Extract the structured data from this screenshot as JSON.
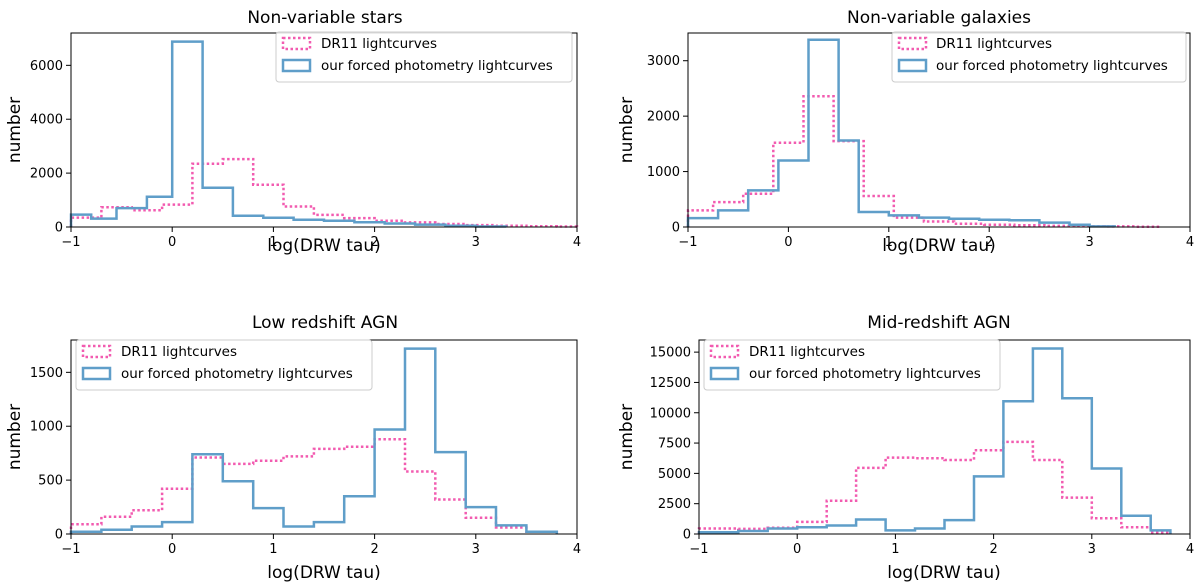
{
  "chart_data": [
    {
      "type": "histogram-step",
      "title": "Non-variable stars",
      "xlabel": "log(DRW tau)",
      "ylabel": "number",
      "xlim": [
        -1,
        4
      ],
      "ylim": [
        0,
        7200
      ],
      "xticks": [
        "−1",
        "0",
        "1",
        "2",
        "3",
        "4"
      ],
      "xtick_values": [
        -1,
        0,
        1,
        2,
        3,
        4
      ],
      "yticks": [
        "0",
        "2000",
        "4000",
        "6000"
      ],
      "ytick_values": [
        0,
        2000,
        4000,
        6000
      ],
      "legend_position": "upper-right",
      "series": [
        {
          "name": "DR11 lightcurves",
          "style": "dotted",
          "color": "#f25bb0",
          "bins": [
            -1.0,
            -0.7,
            -0.4,
            -0.1,
            0.2,
            0.5,
            0.8,
            1.1,
            1.4,
            1.7,
            2.0,
            2.3,
            2.6,
            2.9,
            3.2,
            3.5,
            3.8,
            4.0
          ],
          "counts": [
            350,
            730,
            620,
            830,
            2350,
            2520,
            1570,
            760,
            450,
            330,
            230,
            170,
            110,
            70,
            45,
            30,
            20
          ]
        },
        {
          "name": "our forced photometry lightcurves",
          "style": "solid",
          "color": "#5f9ec9",
          "bins": [
            -1.0,
            -0.8,
            -0.55,
            -0.25,
            0.0,
            0.3,
            0.6,
            0.9,
            1.2,
            1.5,
            1.8,
            2.1,
            2.4,
            2.7,
            3.0,
            3.3
          ],
          "counts": [
            460,
            310,
            700,
            1120,
            6880,
            1460,
            420,
            340,
            270,
            230,
            180,
            130,
            90,
            50,
            20
          ]
        }
      ]
    },
    {
      "type": "histogram-step",
      "title": "Non-variable galaxies",
      "xlabel": "log(DRW tau)",
      "ylabel": "number",
      "xlim": [
        -1,
        4
      ],
      "ylim": [
        0,
        3500
      ],
      "xticks": [
        "−1",
        "0",
        "1",
        "2",
        "3",
        "4"
      ],
      "xtick_values": [
        -1,
        0,
        1,
        2,
        3,
        4
      ],
      "yticks": [
        "0",
        "1000",
        "2000",
        "3000"
      ],
      "ytick_values": [
        0,
        1000,
        2000,
        3000
      ],
      "legend_position": "upper-right",
      "series": [
        {
          "name": "DR11 lightcurves",
          "style": "dotted",
          "color": "#f25bb0",
          "bins": [
            -1.0,
            -0.75,
            -0.45,
            -0.15,
            0.15,
            0.45,
            0.75,
            1.05,
            1.35,
            1.65,
            1.95,
            2.25,
            2.55,
            2.85,
            3.15,
            3.45,
            3.7
          ],
          "counts": [
            300,
            450,
            600,
            1520,
            2360,
            1550,
            560,
            170,
            100,
            60,
            40,
            30,
            20,
            15,
            10,
            5
          ]
        },
        {
          "name": "our forced photometry lightcurves",
          "style": "solid",
          "color": "#5f9ec9",
          "bins": [
            -1.0,
            -0.7,
            -0.4,
            -0.1,
            0.2,
            0.5,
            0.7,
            1.0,
            1.3,
            1.6,
            1.9,
            2.2,
            2.5,
            2.8,
            3.0,
            3.25
          ],
          "counts": [
            160,
            300,
            660,
            1200,
            3380,
            1560,
            270,
            210,
            170,
            150,
            130,
            120,
            80,
            40,
            10
          ]
        }
      ]
    },
    {
      "type": "histogram-step",
      "title": "Low redshift AGN",
      "xlabel": "log(DRW tau)",
      "ylabel": "number",
      "xlim": [
        -1,
        4
      ],
      "ylim": [
        0,
        1800
      ],
      "xticks": [
        "−1",
        "0",
        "1",
        "2",
        "3",
        "4"
      ],
      "xtick_values": [
        -1,
        0,
        1,
        2,
        3,
        4
      ],
      "yticks": [
        "0",
        "500",
        "1000",
        "1500"
      ],
      "ytick_values": [
        0,
        500,
        1000,
        1500
      ],
      "legend_position": "upper-left",
      "series": [
        {
          "name": "DR11 lightcurves",
          "style": "dotted",
          "color": "#f25bb0",
          "bins": [
            -1.0,
            -0.7,
            -0.4,
            -0.1,
            0.2,
            0.5,
            0.8,
            1.1,
            1.4,
            1.7,
            2.0,
            2.3,
            2.6,
            2.9,
            3.2,
            3.5,
            3.8
          ],
          "counts": [
            90,
            160,
            220,
            420,
            710,
            650,
            680,
            720,
            790,
            810,
            880,
            580,
            320,
            150,
            60,
            20
          ]
        },
        {
          "name": "our forced photometry lightcurves",
          "style": "solid",
          "color": "#5f9ec9",
          "bins": [
            -1.0,
            -0.7,
            -0.4,
            -0.1,
            0.2,
            0.5,
            0.8,
            1.1,
            1.4,
            1.7,
            2.0,
            2.3,
            2.6,
            2.9,
            3.2,
            3.5,
            3.8
          ],
          "counts": [
            20,
            40,
            70,
            110,
            740,
            490,
            240,
            70,
            110,
            350,
            970,
            1720,
            760,
            250,
            80,
            20
          ]
        }
      ]
    },
    {
      "type": "histogram-step",
      "title": "Mid-redshift AGN",
      "xlabel": "log(DRW tau)",
      "ylabel": "number",
      "xlim": [
        -1,
        4
      ],
      "ylim": [
        0,
        16000
      ],
      "xticks": [
        "−1",
        "0",
        "1",
        "2",
        "3",
        "4"
      ],
      "xtick_values": [
        -1,
        0,
        1,
        2,
        3,
        4
      ],
      "yticks": [
        "0",
        "2500",
        "5000",
        "7500",
        "10000",
        "12500",
        "15000"
      ],
      "ytick_values": [
        0,
        2500,
        5000,
        7500,
        10000,
        12500,
        15000
      ],
      "legend_position": "upper-left",
      "series": [
        {
          "name": "DR11 lightcurves",
          "style": "dotted",
          "color": "#f25bb0",
          "bins": [
            -1.0,
            -0.6,
            -0.3,
            0.0,
            0.3,
            0.6,
            0.9,
            1.2,
            1.5,
            1.8,
            2.1,
            2.4,
            2.7,
            3.0,
            3.3,
            3.6,
            3.8
          ],
          "counts": [
            450,
            420,
            520,
            1000,
            2750,
            5450,
            6300,
            6250,
            6100,
            6900,
            7600,
            6100,
            3000,
            1300,
            550,
            150
          ]
        },
        {
          "name": "our forced photometry lightcurves",
          "style": "solid",
          "color": "#5f9ec9",
          "bins": [
            -1.0,
            -0.6,
            -0.3,
            0.0,
            0.3,
            0.6,
            0.9,
            1.2,
            1.5,
            1.8,
            2.1,
            2.4,
            2.7,
            3.0,
            3.3,
            3.6,
            3.8
          ],
          "counts": [
            150,
            250,
            450,
            550,
            700,
            1200,
            300,
            450,
            1150,
            4750,
            10950,
            15300,
            11200,
            5400,
            1500,
            300
          ]
        }
      ]
    }
  ]
}
